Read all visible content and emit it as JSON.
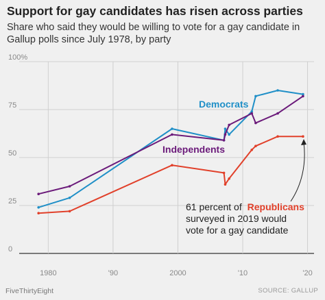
{
  "header": {
    "title": "Support for gay candidates has risen across parties",
    "subtitle": "Share who said they would be willing to vote for a gay candidate in Gallup polls since July 1978, by party"
  },
  "footer": {
    "brand": "FiveThirtyEight",
    "source": "SOURCE: GALLUP"
  },
  "chart_data": {
    "type": "line",
    "title": "Support for gay candidates has risen across parties",
    "xlabel": "",
    "ylabel": "",
    "xlim": [
      1977,
      2021
    ],
    "ylim": [
      0,
      100
    ],
    "x_ticks": [
      1980,
      1990,
      2000,
      2010,
      2020
    ],
    "x_tick_labels": [
      "1980",
      "'90",
      "2000",
      "'10",
      "'20"
    ],
    "y_ticks": [
      0,
      25,
      50,
      75,
      100
    ],
    "y_tick_labels": [
      "0",
      "25",
      "50",
      "75",
      "100%"
    ],
    "grid": true,
    "series": [
      {
        "name": "Democrats",
        "color": "#1f8fc7",
        "x": [
          1978.5,
          1983.3,
          1999.1,
          2007.1,
          2007.3,
          2007.9,
          2011.4,
          2012.0,
          2015.4,
          2019.3
        ],
        "y": [
          24,
          29,
          65,
          59,
          65,
          62,
          74,
          82,
          85,
          83
        ]
      },
      {
        "name": "Independents",
        "color": "#6b1a7a",
        "x": [
          1978.5,
          1983.3,
          1999.1,
          2007.1,
          2007.3,
          2007.9,
          2011.4,
          2012.0,
          2015.4,
          2019.3
        ],
        "y": [
          31,
          35,
          62,
          59,
          62,
          67,
          73,
          68,
          73,
          82
        ]
      },
      {
        "name": "Republicans",
        "color": "#e1402a",
        "x": [
          1978.5,
          1983.3,
          1999.1,
          2007.1,
          2007.3,
          2007.9,
          2011.4,
          2012.0,
          2015.4,
          2019.3
        ],
        "y": [
          21,
          22,
          46,
          42,
          36,
          39,
          54,
          56,
          61,
          61
        ]
      }
    ],
    "annotations": {
      "democrats_label": "Democrats",
      "independents_label": "Independents",
      "republicans_note_prefix": "61 percent of",
      "republicans_note_highlight": "Republicans",
      "republicans_note_line2": "surveyed in 2019 would",
      "republicans_note_line3": "vote for a gay candidate"
    }
  }
}
